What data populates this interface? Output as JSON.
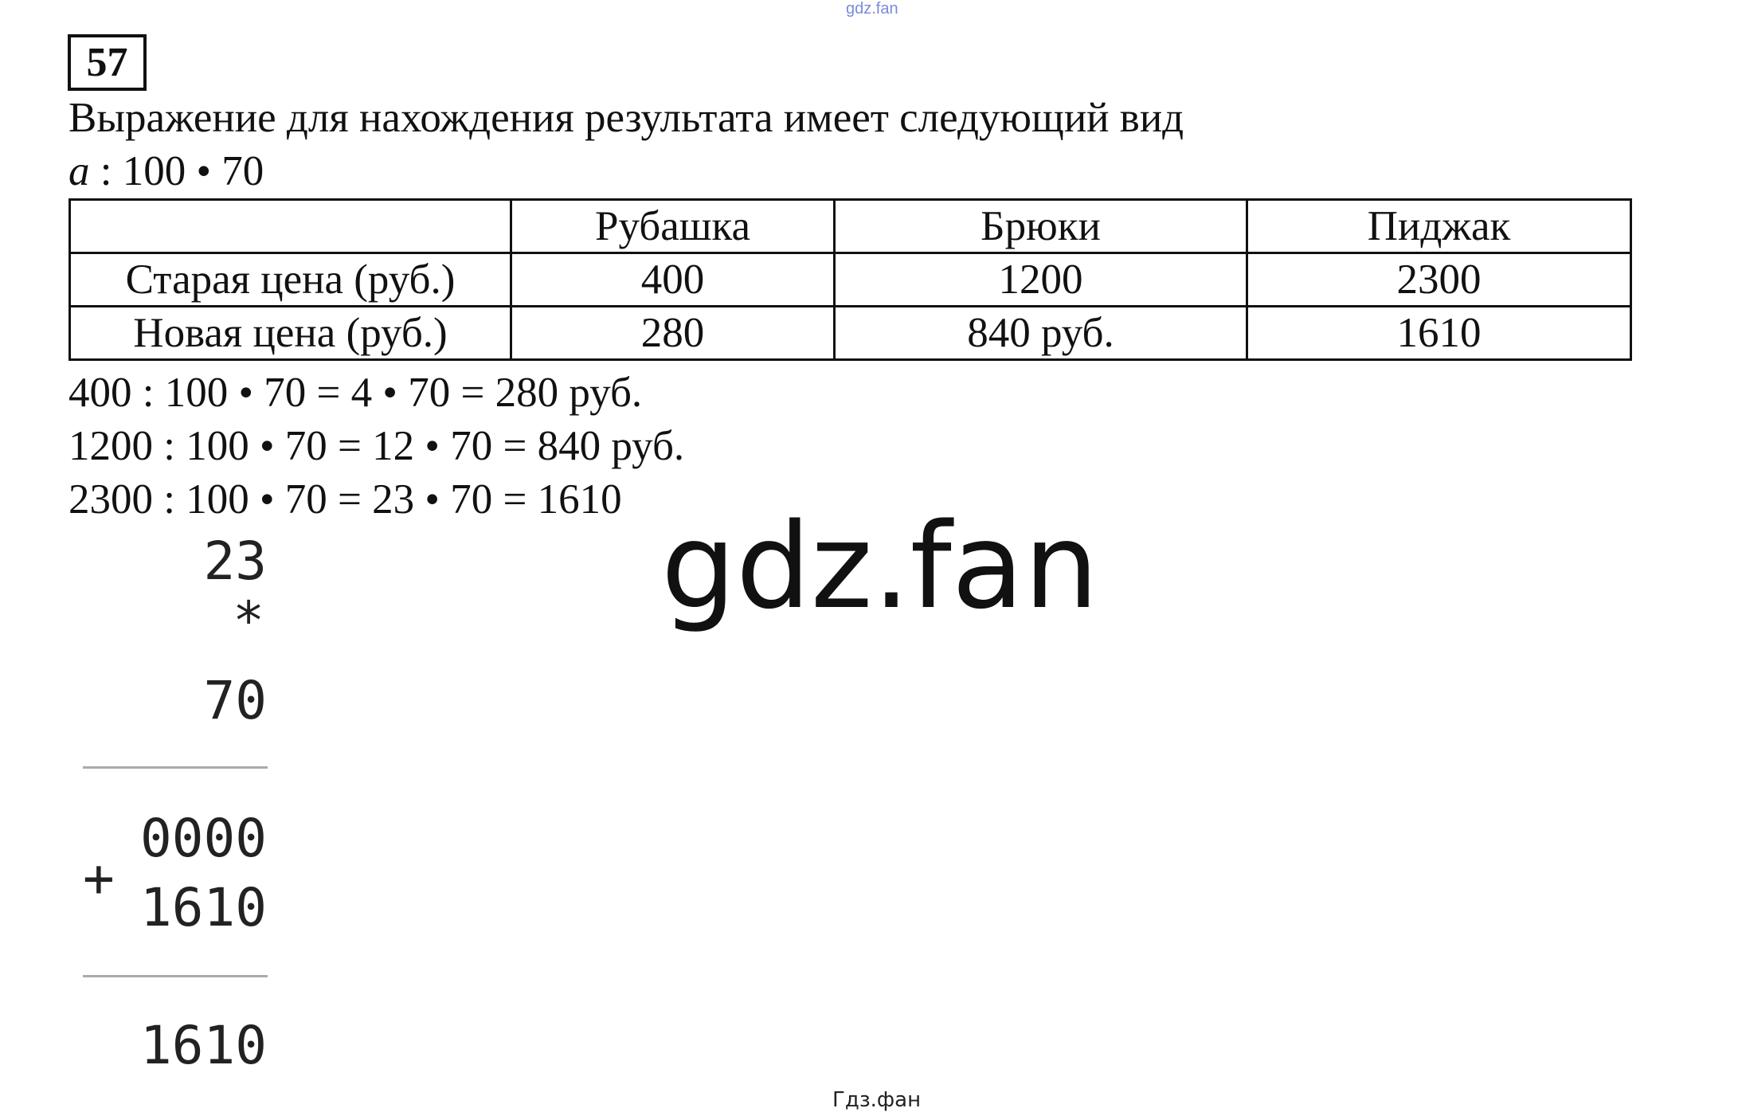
{
  "watermark_top": "gdz.fan",
  "task_number": "57",
  "intro": "Выражение для нахождения результата имеет следующий вид",
  "formula": {
    "var": "a",
    "rest": " : 100 • 70"
  },
  "table": {
    "headers": [
      "",
      "Рубашка",
      "Брюки",
      "Пиджак"
    ],
    "rows": [
      [
        "Старая цена (руб.)",
        "400",
        "1200",
        "2300"
      ],
      [
        "Новая цена (руб.)",
        "280",
        "840 руб.",
        "1610"
      ]
    ]
  },
  "equations": [
    "400 : 100 • 70 = 4 • 70 = 280 руб.",
    "1200 : 100 • 70 = 12 • 70 = 840 руб.",
    "2300 : 100 • 70 = 23 • 70 = 1610"
  ],
  "column_mult": {
    "a": "23",
    "op": "*",
    "b": "70",
    "p1": "0000",
    "plus": "+",
    "p2": "1610",
    "result": "1610"
  },
  "watermark_center": "gdz.fan",
  "watermark_bottom": "Гдз.фан"
}
